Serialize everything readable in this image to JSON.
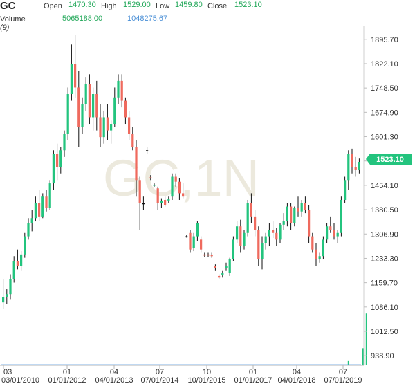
{
  "header": {
    "symbol": "GC",
    "open_label": "Open",
    "open_value": "1470.30",
    "high_label": "High",
    "high_value": "1529.00",
    "low_label": "Low",
    "low_value": "1459.80",
    "close_label": "Close",
    "close_value": "1523.10",
    "volume_label": "Volume",
    "volume_period": "(9)",
    "volume_value_1": "5065188.00",
    "volume_value_2": "1048275.67"
  },
  "watermark": "GC,1N",
  "last_price_badge": "1523.10",
  "colors": {
    "up": "#23c47e",
    "down": "#ef6a5e",
    "flat": "#111111",
    "volume": "#4a8fd6",
    "badge": "#23c47e"
  },
  "chart_data": {
    "type": "candlestick",
    "y_ticks": [
      "1895.70",
      "1822.10",
      "1748.50",
      "1674.90",
      "1601.30",
      "1527.70",
      "1454.10",
      "1380.50",
      "1306.90",
      "1233.30",
      "1159.70",
      "1086.10",
      "1012.50",
      "938.90"
    ],
    "x_ticks": [
      {
        "top": "03",
        "bottom": "03/01/2010"
      },
      {
        "top": "01",
        "bottom": "01/01/2012"
      },
      {
        "top": "04",
        "bottom": "04/01/2013"
      },
      {
        "top": "07",
        "bottom": "07/01/2014"
      },
      {
        "top": "10",
        "bottom": "10/01/2015"
      },
      {
        "top": "01",
        "bottom": "01/01/2017"
      },
      {
        "top": "04",
        "bottom": "04/01/2018"
      },
      {
        "top": "07",
        "bottom": "07/01/2019"
      }
    ],
    "ylim": [
      910,
      1935
    ],
    "candles": [
      [
        1100,
        1170,
        1080,
        1115
      ],
      [
        1115,
        1140,
        1095,
        1125
      ],
      [
        1125,
        1185,
        1110,
        1170
      ],
      [
        1170,
        1240,
        1160,
        1225
      ],
      [
        1225,
        1260,
        1200,
        1210
      ],
      [
        1210,
        1255,
        1195,
        1245
      ],
      [
        1245,
        1310,
        1235,
        1300
      ],
      [
        1300,
        1355,
        1290,
        1340
      ],
      [
        1340,
        1380,
        1315,
        1355
      ],
      [
        1355,
        1420,
        1345,
        1400
      ],
      [
        1400,
        1440,
        1345,
        1360
      ],
      [
        1360,
        1430,
        1355,
        1420
      ],
      [
        1420,
        1440,
        1375,
        1385
      ],
      [
        1385,
        1470,
        1380,
        1460
      ],
      [
        1460,
        1560,
        1440,
        1550
      ],
      [
        1550,
        1580,
        1470,
        1510
      ],
      [
        1510,
        1570,
        1490,
        1560
      ],
      [
        1560,
        1620,
        1540,
        1610
      ],
      [
        1610,
        1750,
        1590,
        1730
      ],
      [
        1730,
        1880,
        1710,
        1820
      ],
      [
        1820,
        1910,
        1720,
        1750
      ],
      [
        1750,
        1800,
        1570,
        1630
      ],
      [
        1630,
        1720,
        1610,
        1700
      ],
      [
        1700,
        1780,
        1680,
        1760
      ],
      [
        1760,
        1790,
        1640,
        1660
      ],
      [
        1660,
        1750,
        1620,
        1730
      ],
      [
        1730,
        1770,
        1620,
        1660
      ],
      [
        1660,
        1700,
        1570,
        1600
      ],
      [
        1600,
        1680,
        1580,
        1660
      ],
      [
        1660,
        1700,
        1590,
        1620
      ],
      [
        1620,
        1650,
        1580,
        1640
      ],
      [
        1640,
        1750,
        1630,
        1720
      ],
      [
        1720,
        1790,
        1700,
        1770
      ],
      [
        1770,
        1790,
        1690,
        1710
      ],
      [
        1710,
        1720,
        1640,
        1660
      ],
      [
        1660,
        1680,
        1590,
        1610
      ],
      [
        1610,
        1630,
        1560,
        1570
      ],
      [
        1570,
        1590,
        1420,
        1470
      ],
      [
        1470,
        1480,
        1320,
        1400
      ],
      [
        1400,
        1420,
        1380,
        1400
      ],
      [
        1560,
        1570,
        1550,
        1560
      ],
      [
        1478,
        1485,
        1470,
        1476
      ],
      [
        1455,
        1460,
        1450,
        1456
      ],
      [
        1445,
        1450,
        1380,
        1400
      ],
      [
        1400,
        1415,
        1385,
        1408
      ],
      [
        1410,
        1420,
        1390,
        1395
      ],
      [
        1408,
        1420,
        1400,
        1412
      ],
      [
        1420,
        1490,
        1410,
        1480
      ],
      [
        1480,
        1490,
        1450,
        1465
      ],
      [
        1465,
        1475,
        1410,
        1430
      ],
      [
        1430,
        1460,
        1415,
        1420
      ],
      [
        1300,
        1305,
        1296,
        1300
      ],
      [
        1310,
        1320,
        1250,
        1260
      ],
      [
        1265,
        1310,
        1255,
        1300
      ],
      [
        1300,
        1345,
        1285,
        1340
      ],
      [
        1290,
        1300,
        1250,
        1260
      ],
      [
        1245,
        1250,
        1238,
        1242
      ],
      [
        1245,
        1250,
        1238,
        1243
      ],
      [
        1243,
        1250,
        1235,
        1240
      ],
      [
        1210,
        1215,
        1195,
        1205
      ],
      [
        1180,
        1185,
        1170,
        1175
      ],
      [
        1183,
        1195,
        1175,
        1190
      ],
      [
        1205,
        1220,
        1195,
        1210
      ],
      [
        1190,
        1235,
        1180,
        1230
      ],
      [
        1230,
        1300,
        1225,
        1290
      ],
      [
        1290,
        1345,
        1280,
        1330
      ],
      [
        1330,
        1350,
        1250,
        1270
      ],
      [
        1270,
        1320,
        1260,
        1310
      ],
      [
        1310,
        1410,
        1300,
        1400
      ],
      [
        1400,
        1430,
        1340,
        1360
      ],
      [
        1360,
        1380,
        1300,
        1320
      ],
      [
        1320,
        1330,
        1210,
        1230
      ],
      [
        1230,
        1300,
        1200,
        1280
      ],
      [
        1280,
        1310,
        1260,
        1300
      ],
      [
        1300,
        1340,
        1270,
        1320
      ],
      [
        1320,
        1345,
        1295,
        1310
      ],
      [
        1310,
        1325,
        1270,
        1290
      ],
      [
        1290,
        1340,
        1280,
        1335
      ],
      [
        1335,
        1370,
        1320,
        1345
      ],
      [
        1345,
        1400,
        1330,
        1390
      ],
      [
        1390,
        1400,
        1320,
        1340
      ],
      [
        1340,
        1390,
        1330,
        1385
      ],
      [
        1385,
        1420,
        1360,
        1375
      ],
      [
        1375,
        1410,
        1360,
        1400
      ],
      [
        1400,
        1420,
        1370,
        1380
      ],
      [
        1380,
        1395,
        1280,
        1300
      ],
      [
        1300,
        1310,
        1250,
        1260
      ],
      [
        1260,
        1280,
        1210,
        1230
      ],
      [
        1230,
        1250,
        1220,
        1240
      ],
      [
        1240,
        1300,
        1230,
        1290
      ],
      [
        1290,
        1340,
        1280,
        1330
      ],
      [
        1330,
        1360,
        1310,
        1320
      ],
      [
        1320,
        1340,
        1290,
        1300
      ],
      [
        1300,
        1320,
        1280,
        1310
      ],
      [
        1310,
        1420,
        1300,
        1410
      ],
      [
        1410,
        1480,
        1400,
        1470
      ],
      [
        1470,
        1560,
        1440,
        1550
      ],
      [
        1550,
        1565,
        1490,
        1510
      ],
      [
        1510,
        1540,
        1480,
        1500
      ],
      [
        1500,
        1535,
        1490,
        1525
      ]
    ],
    "volume_bars": [
      {
        "index": 96,
        "value": 0.07
      },
      {
        "index": 100,
        "value": 0.28
      },
      {
        "index": 101,
        "value": 0.85
      }
    ]
  }
}
